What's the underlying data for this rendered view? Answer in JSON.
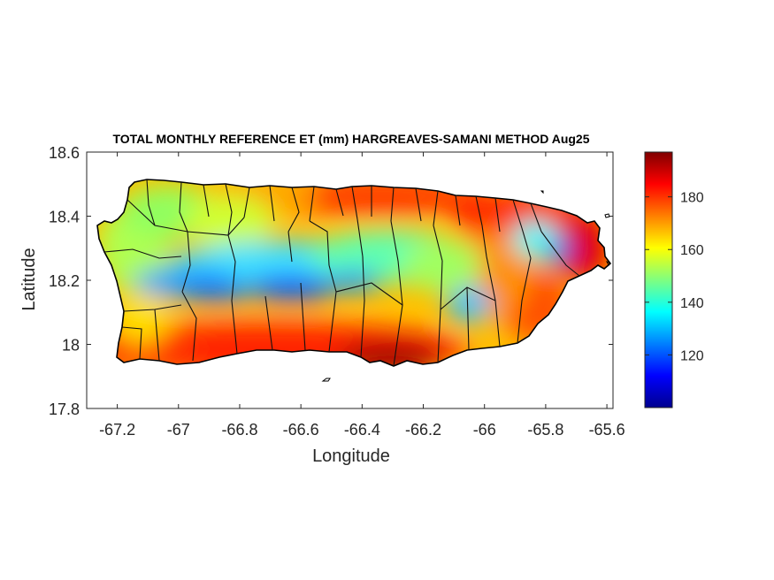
{
  "chart_data": {
    "type": "heatmap",
    "title": "TOTAL MONTHLY REFERENCE ET (mm) HARGREAVES-SAMANI METHOD Aug25",
    "xlabel": "Longitude",
    "ylabel": "Latitude",
    "xlim": [
      -67.3,
      -65.58
    ],
    "ylim": [
      17.8,
      18.6
    ],
    "x_ticks": [
      -67.2,
      -67,
      -66.8,
      -66.6,
      -66.4,
      -66.2,
      -66,
      -65.8,
      -65.6
    ],
    "x_tick_labels": [
      "-67.2",
      "-67",
      "-66.8",
      "-66.6",
      "-66.4",
      "-66.2",
      "-66",
      "-65.8",
      "-65.6"
    ],
    "y_ticks": [
      17.8,
      18,
      18.2,
      18.4,
      18.6
    ],
    "y_tick_labels": [
      "17.8",
      "18",
      "18.2",
      "18.4",
      "18.6"
    ],
    "colorbar": {
      "colormap": "jet",
      "range": [
        100,
        197
      ],
      "ticks": [
        120,
        140,
        160,
        180
      ],
      "tick_labels": [
        "120",
        "140",
        "160",
        "180"
      ]
    },
    "field": {
      "description_points": [
        {
          "lon": -66.58,
          "lat": 18.17,
          "value": 110
        },
        {
          "lon": -66.95,
          "lat": 18.16,
          "value": 118
        },
        {
          "lon": -65.78,
          "lat": 18.29,
          "value": 112
        },
        {
          "lon": -66.02,
          "lat": 18.13,
          "value": 128
        },
        {
          "lon": -66.45,
          "lat": 17.98,
          "value": 195
        },
        {
          "lon": -66.0,
          "lat": 18.42,
          "value": 190
        },
        {
          "lon": -67.1,
          "lat": 18.0,
          "value": 180
        },
        {
          "lon": -67.05,
          "lat": 18.35,
          "value": 155
        }
      ]
    },
    "grid": false
  },
  "colors": {
    "axis": "#262626",
    "boundary": "#000000",
    "background": "#ffffff"
  }
}
